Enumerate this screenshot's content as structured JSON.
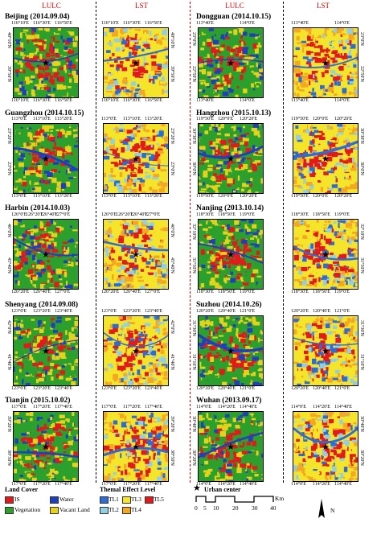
{
  "headers": {
    "lulc": "LULC",
    "lst": "LST"
  },
  "cities": [
    {
      "title": "Beijing (2014.09.04)",
      "lon_top": [
        "116°10'E",
        "116°30'E",
        "116°50'E"
      ],
      "lon_bottom": [
        "116°10'E",
        "116°30'E",
        "116°50'E"
      ],
      "lat": [
        "40°10'N",
        "39°50'N"
      ]
    },
    {
      "title": "Guangzhou (2014.10.15)",
      "lon_top": [
        "113°0'E",
        "113°10'E",
        "113°20'E"
      ],
      "lon_bottom": [
        "113°0'E",
        "113°10'E",
        "113°20'E"
      ],
      "lat": [
        "23°20'N",
        "23°0'N"
      ]
    },
    {
      "title": "Harbin (2014.10.03)",
      "lon_top": [
        "126°0'E",
        "126°20'E",
        "126°40'E",
        "127°0'E"
      ],
      "lon_bottom": [
        "126°20'E",
        "126°40'E",
        "127°0'E"
      ],
      "lat": [
        "46°0'N",
        "45°40'N"
      ]
    },
    {
      "title": "Shenyang (2014.09.08)",
      "lon_top": [
        "123°0'E",
        "123°20'E",
        "123°40'E"
      ],
      "lon_bottom": [
        "123°0'E",
        "123°20'E",
        "123°40'E"
      ],
      "lat": [
        "42°0'N",
        "41°40'N"
      ]
    },
    {
      "title": "Tianjin (2015.10.02)",
      "lon_top": [
        "117°0'E",
        "117°20'E",
        "117°40'E"
      ],
      "lon_bottom": [
        "117°0'E",
        "117°20'E",
        "117°40'E"
      ],
      "lat": [
        "39°20'N",
        "38°50'N"
      ]
    },
    {
      "title": "Dongguan (2014.10.15)",
      "lon_top": [
        "113°40'E",
        "114°0'E"
      ],
      "lon_bottom": [
        "113°40'E",
        "114°0'E"
      ],
      "lat": [
        "23°0'N",
        "22°50'N"
      ]
    },
    {
      "title": "Hangzhou (2015.10.13)",
      "lon_top": [
        "119°50'E",
        "120°0'E",
        "120°20'E"
      ],
      "lon_bottom": [
        "119°50'E",
        "120°0'E",
        "120°20'E"
      ],
      "lat": [
        "30°30'N",
        "30°0'N"
      ]
    },
    {
      "title": "Nanjing (2013.10.14)",
      "lon_top": [
        "118°30'E",
        "118°50'E",
        "119°0'E"
      ],
      "lon_bottom": [
        "118°30'E",
        "118°50'E",
        "119°0'E"
      ],
      "lat": [
        "32°10'N",
        "31°50'N"
      ]
    },
    {
      "title": "Suzhou (2014.10.26)",
      "lon_top": [
        "120°20'E",
        "120°40'E",
        "121°0'E"
      ],
      "lon_bottom": [
        "120°20'E",
        "120°40'E",
        "121°0'E"
      ],
      "lat": [
        "31°30'N",
        "31°10'N"
      ]
    },
    {
      "title": "Wuhan (2013.09.17)",
      "lon_top": [
        "114°0'E",
        "114°20'E",
        "114°40'E"
      ],
      "lon_bottom": [
        "114°0'E",
        "114°20'E",
        "114°40'E"
      ],
      "lat": [
        "30°40'N",
        "30°20'N"
      ]
    }
  ],
  "legend": {
    "land_cover_title": "Land Cover",
    "land_cover_items": [
      {
        "label": "IS",
        "color": "#e31a1c"
      },
      {
        "label": "Water",
        "color": "#1f3fbf"
      },
      {
        "label": "Vegetation",
        "color": "#2ca02c"
      },
      {
        "label": "Vacant Land",
        "color": "#e6d21a"
      }
    ],
    "thermal_title": "Themal Effect Level",
    "thermal_items": [
      {
        "label": "TL1",
        "color": "#2b6cd6"
      },
      {
        "label": "TL2",
        "color": "#8fd0e6"
      },
      {
        "label": "TL3",
        "color": "#f5e52a"
      },
      {
        "label": "TL4",
        "color": "#f5a623"
      },
      {
        "label": "TL5",
        "color": "#e31a1c"
      }
    ],
    "urban_center": "Urban center",
    "scale_ticks": [
      "0",
      "5",
      "10",
      "20",
      "30",
      "40"
    ],
    "scale_unit": "Km",
    "north": "N"
  }
}
